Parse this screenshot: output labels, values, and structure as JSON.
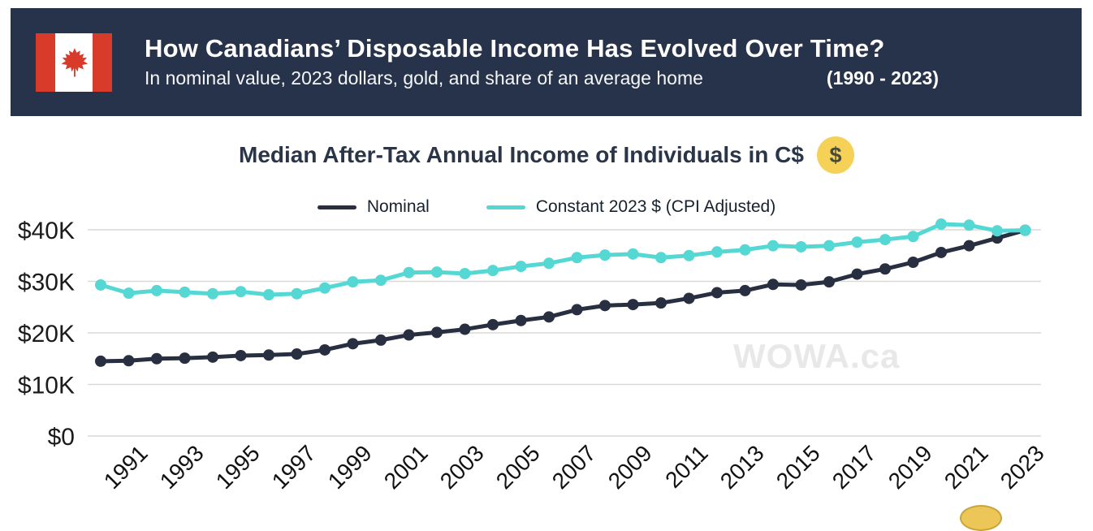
{
  "header": {
    "title": "How Canadians’ Disposable Income Has Evolved Over Time?",
    "subtitle": "In nominal value, 2023 dollars, gold, and share of an average home",
    "range": "(1990 - 2023)",
    "background_color": "#27334a",
    "flag_red": "#d93b2b"
  },
  "chart": {
    "title": "Median After-Tax Annual Income of Individuals in C$",
    "coin_symbol": "$",
    "coin_color": "#f5d158"
  },
  "watermark": "WOWA.ca",
  "chart_data": {
    "type": "line",
    "title": "Median After-Tax Annual Income of Individuals in C$",
    "xlabel": "",
    "ylabel": "",
    "x": [
      1990,
      1991,
      1992,
      1993,
      1994,
      1995,
      1996,
      1997,
      1998,
      1999,
      2000,
      2001,
      2002,
      2003,
      2004,
      2005,
      2006,
      2007,
      2008,
      2009,
      2010,
      2011,
      2012,
      2013,
      2014,
      2015,
      2016,
      2017,
      2018,
      2019,
      2020,
      2021,
      2022,
      2023
    ],
    "series": [
      {
        "name": "Nominal",
        "color": "#272f41",
        "values": [
          14500,
          14600,
          15000,
          15100,
          15300,
          15600,
          15700,
          15900,
          16700,
          17900,
          18600,
          19600,
          20100,
          20700,
          21600,
          22400,
          23100,
          24500,
          25300,
          25500,
          25800,
          26700,
          27800,
          28200,
          29400,
          29300,
          29900,
          31400,
          32400,
          33700,
          35600,
          36900,
          38400,
          39900
        ]
      },
      {
        "name": "Constant 2023 $ (CPI Adjusted)",
        "color": "#55d8d4",
        "values": [
          29300,
          27700,
          28200,
          27900,
          27600,
          28000,
          27400,
          27600,
          28700,
          29900,
          30200,
          31700,
          31800,
          31500,
          32100,
          32900,
          33500,
          34600,
          35100,
          35300,
          34600,
          35000,
          35700,
          36100,
          36900,
          36700,
          36900,
          37600,
          38100,
          38700,
          41100,
          40900,
          39800,
          39900
        ]
      }
    ],
    "ylim": [
      0,
      40000
    ],
    "yticks": [
      0,
      10000,
      20000,
      30000,
      40000
    ],
    "ytick_labels": [
      "$0",
      "$10K",
      "$20K",
      "$30K",
      "$40K"
    ],
    "xtick_labels": [
      "1991",
      "1993",
      "1995",
      "1997",
      "1999",
      "2001",
      "2003",
      "2005",
      "2007",
      "2009",
      "2011",
      "2013",
      "2015",
      "2017",
      "2019",
      "2021",
      "2023"
    ],
    "grid": "horizontal",
    "legend_position": "top"
  }
}
